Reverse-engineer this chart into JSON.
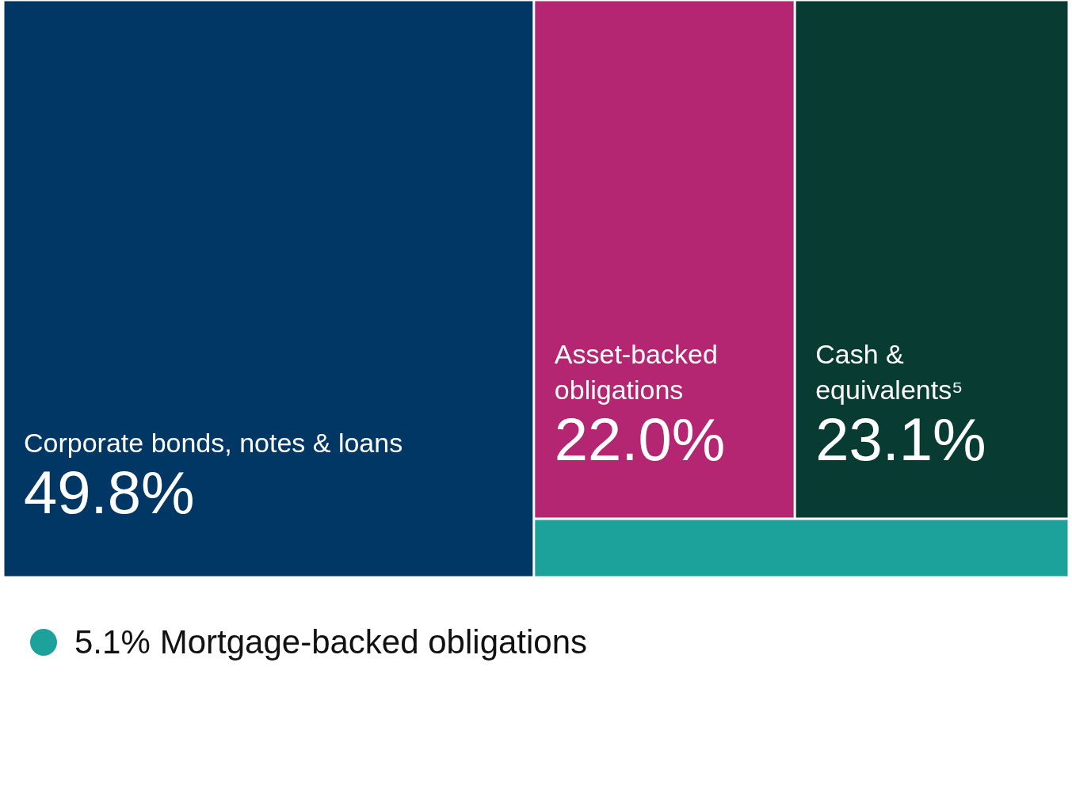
{
  "chart_data": {
    "type": "other",
    "categories": [
      "Corporate bonds, notes & loans",
      "Asset-backed obligations",
      "Cash & equivalents⁵",
      "Mortgage-backed obligations"
    ],
    "values": [
      49.8,
      22.0,
      23.1,
      5.1
    ],
    "value_labels": [
      "49.8%",
      "22.0%",
      "23.1%",
      "5.1%"
    ],
    "colors": [
      "#003764",
      "#b52672",
      "#083b32",
      "#1ca19b"
    ]
  }
}
